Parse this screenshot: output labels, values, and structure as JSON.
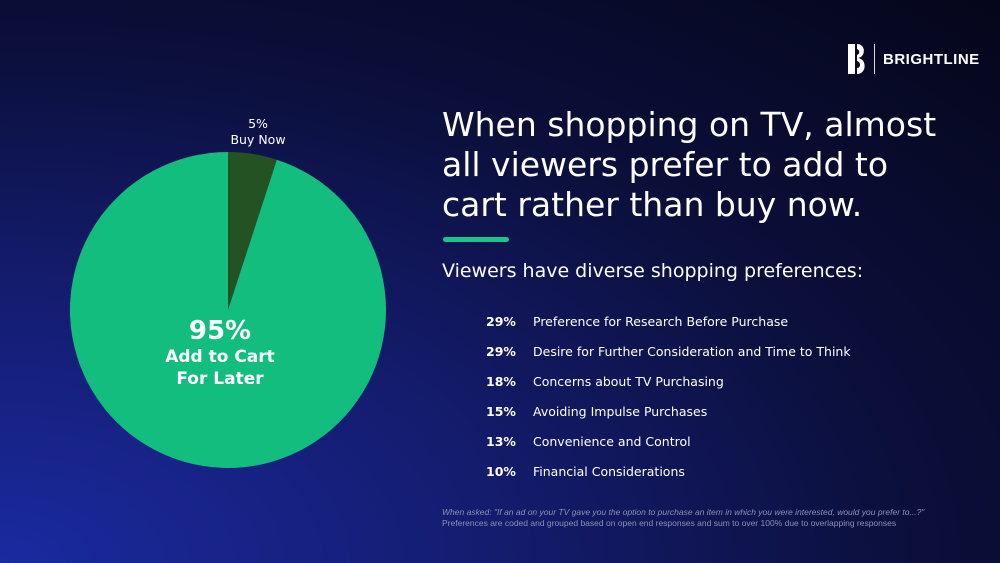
{
  "brand": {
    "name": "BRIGHTLINE",
    "icon": "brightline-logo-icon"
  },
  "headline": "When shopping on TV, almost all viewers prefer to add to cart rather than buy now.",
  "subheadline": "Viewers have diverse shopping preferences:",
  "preferences": [
    {
      "pct": "29%",
      "label": "Preference for Research Before Purchase"
    },
    {
      "pct": "29%",
      "label": "Desire for Further Consideration and Time to Think"
    },
    {
      "pct": "18%",
      "label": "Concerns about TV Purchasing"
    },
    {
      "pct": "15%",
      "label": "Avoiding Impulse Purchases"
    },
    {
      "pct": "13%",
      "label": "Convenience and Control"
    },
    {
      "pct": "10%",
      "label": "Financial Considerations"
    }
  ],
  "footnote": {
    "question": "When asked: \"If an ad on your TV gave you the option to purchase an item in which you were interested, would you prefer to...?\"",
    "note": "Preferences are coded and grouped based on open end responses and sum to over 100% due to overlapping responses"
  },
  "colors": {
    "accent": "#1ec38b",
    "add_to_cart": "#12bd7e",
    "buy_now": "#245223",
    "background": "#0b0f3a"
  },
  "chart_data": {
    "type": "pie",
    "slices": [
      {
        "label_lines": [
          "5%",
          "Buy Now"
        ],
        "value": 5,
        "color": "#245223"
      },
      {
        "label_lines": [
          "95%",
          "Add to Cart",
          "For Later"
        ],
        "value": 95,
        "color": "#12bd7e"
      }
    ]
  }
}
